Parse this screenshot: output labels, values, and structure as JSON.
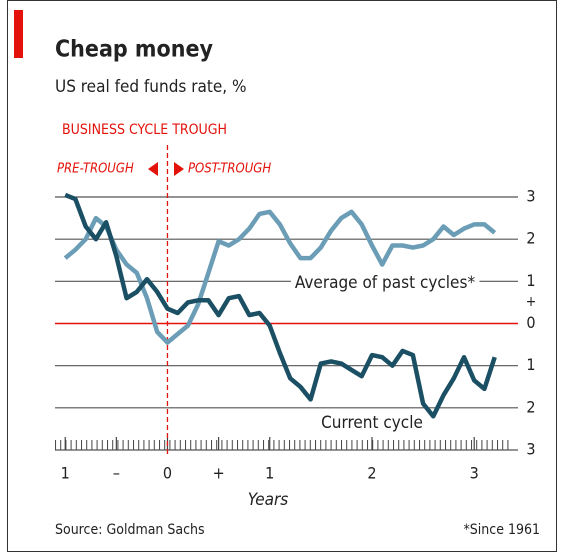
{
  "chart_data": {
    "type": "line",
    "title": "Cheap money",
    "subtitle": "US real fed funds rate, %",
    "marker_label": "BUSINESS CYCLE TROUGH",
    "pre_label": "PRE-TROUGH",
    "post_label": "POST-TROUGH",
    "marker_x": 0,
    "x_label": "Years",
    "source": "Source: Goldman Sachs",
    "footnote": "*Since 1961",
    "y_sign": "+",
    "x": [
      -1.0,
      -0.9,
      -0.8,
      -0.7,
      -0.6,
      -0.5,
      -0.4,
      -0.3,
      -0.2,
      -0.1,
      0.0,
      0.1,
      0.2,
      0.3,
      0.4,
      0.5,
      0.6,
      0.7,
      0.8,
      0.9,
      1.0,
      1.1,
      1.2,
      1.3,
      1.4,
      1.5,
      1.6,
      1.7,
      1.8,
      1.9,
      2.0,
      2.1,
      2.2,
      2.3,
      2.4,
      2.5,
      2.6,
      2.7,
      2.8,
      2.9,
      3.0,
      3.1,
      3.2
    ],
    "series": [
      {
        "name": "Average of past cycles*",
        "color": "#6b9db6",
        "values": [
          1.55,
          1.75,
          2.0,
          2.5,
          2.3,
          1.75,
          1.4,
          1.2,
          0.6,
          -0.2,
          -0.45,
          -0.25,
          -0.05,
          0.45,
          1.2,
          1.95,
          1.85,
          2.0,
          2.25,
          2.6,
          2.65,
          2.35,
          1.9,
          1.55,
          1.55,
          1.8,
          2.2,
          2.5,
          2.65,
          2.35,
          1.85,
          1.4,
          1.85,
          1.85,
          1.8,
          1.85,
          2.0,
          2.3,
          2.1,
          2.25,
          2.35,
          2.35,
          2.15
        ]
      },
      {
        "name": "Current cycle",
        "color": "#1b4f64",
        "values": [
          3.05,
          2.95,
          2.3,
          2.0,
          2.4,
          1.6,
          0.6,
          0.75,
          1.05,
          0.75,
          0.35,
          0.25,
          0.5,
          0.55,
          0.55,
          0.2,
          0.6,
          0.65,
          0.2,
          0.25,
          -0.05,
          -0.7,
          -1.3,
          -1.5,
          -1.8,
          -0.95,
          -0.9,
          -0.95,
          -1.1,
          -1.25,
          -0.75,
          -0.8,
          -1.0,
          -0.65,
          -0.75,
          -1.9,
          -2.2,
          -1.7,
          -1.3,
          -0.8,
          -1.35,
          -1.55,
          -0.8
        ]
      }
    ],
    "xlim": [
      -1.1,
      3.35
    ],
    "ylim": [
      -3,
      3
    ],
    "xticks": [
      {
        "value": -1,
        "label": "1"
      },
      {
        "value": -0.5,
        "label": "–"
      },
      0,
      {
        "value": 0.5,
        "label": "+"
      },
      1,
      2,
      3
    ],
    "yticks": [
      3,
      2,
      1,
      0,
      {
        "value": -1,
        "label": "1"
      },
      {
        "value": -2,
        "label": "2"
      },
      {
        "value": -3,
        "label": "3"
      }
    ],
    "grid": true,
    "zero_line_color": "#e3120b"
  }
}
